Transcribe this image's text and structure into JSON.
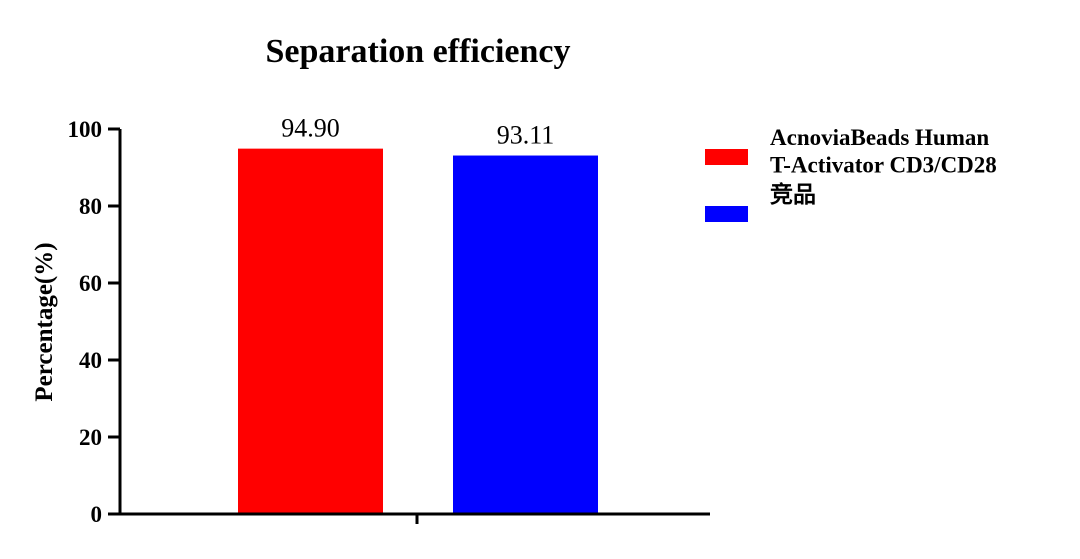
{
  "chart_data": {
    "type": "bar",
    "title": "Separation efficiency",
    "xlabel": "",
    "ylabel": "Percentage(%)",
    "ylim": [
      0,
      100
    ],
    "yticks": [
      0,
      20,
      40,
      60,
      80,
      100
    ],
    "grid": false,
    "legend_position": "right",
    "series": [
      {
        "name": "AcnoviaBeads Human T-Activator CD3/CD28",
        "legend_lines": [
          "AcnoviaBeads Human",
          "T-Activator CD3/CD28"
        ],
        "value": 94.9,
        "label": "94.90",
        "color": "#ff0000"
      },
      {
        "name": "竞品",
        "legend_lines": [
          "竞品"
        ],
        "value": 93.11,
        "label": "93.11",
        "color": "#0000ff"
      }
    ]
  }
}
